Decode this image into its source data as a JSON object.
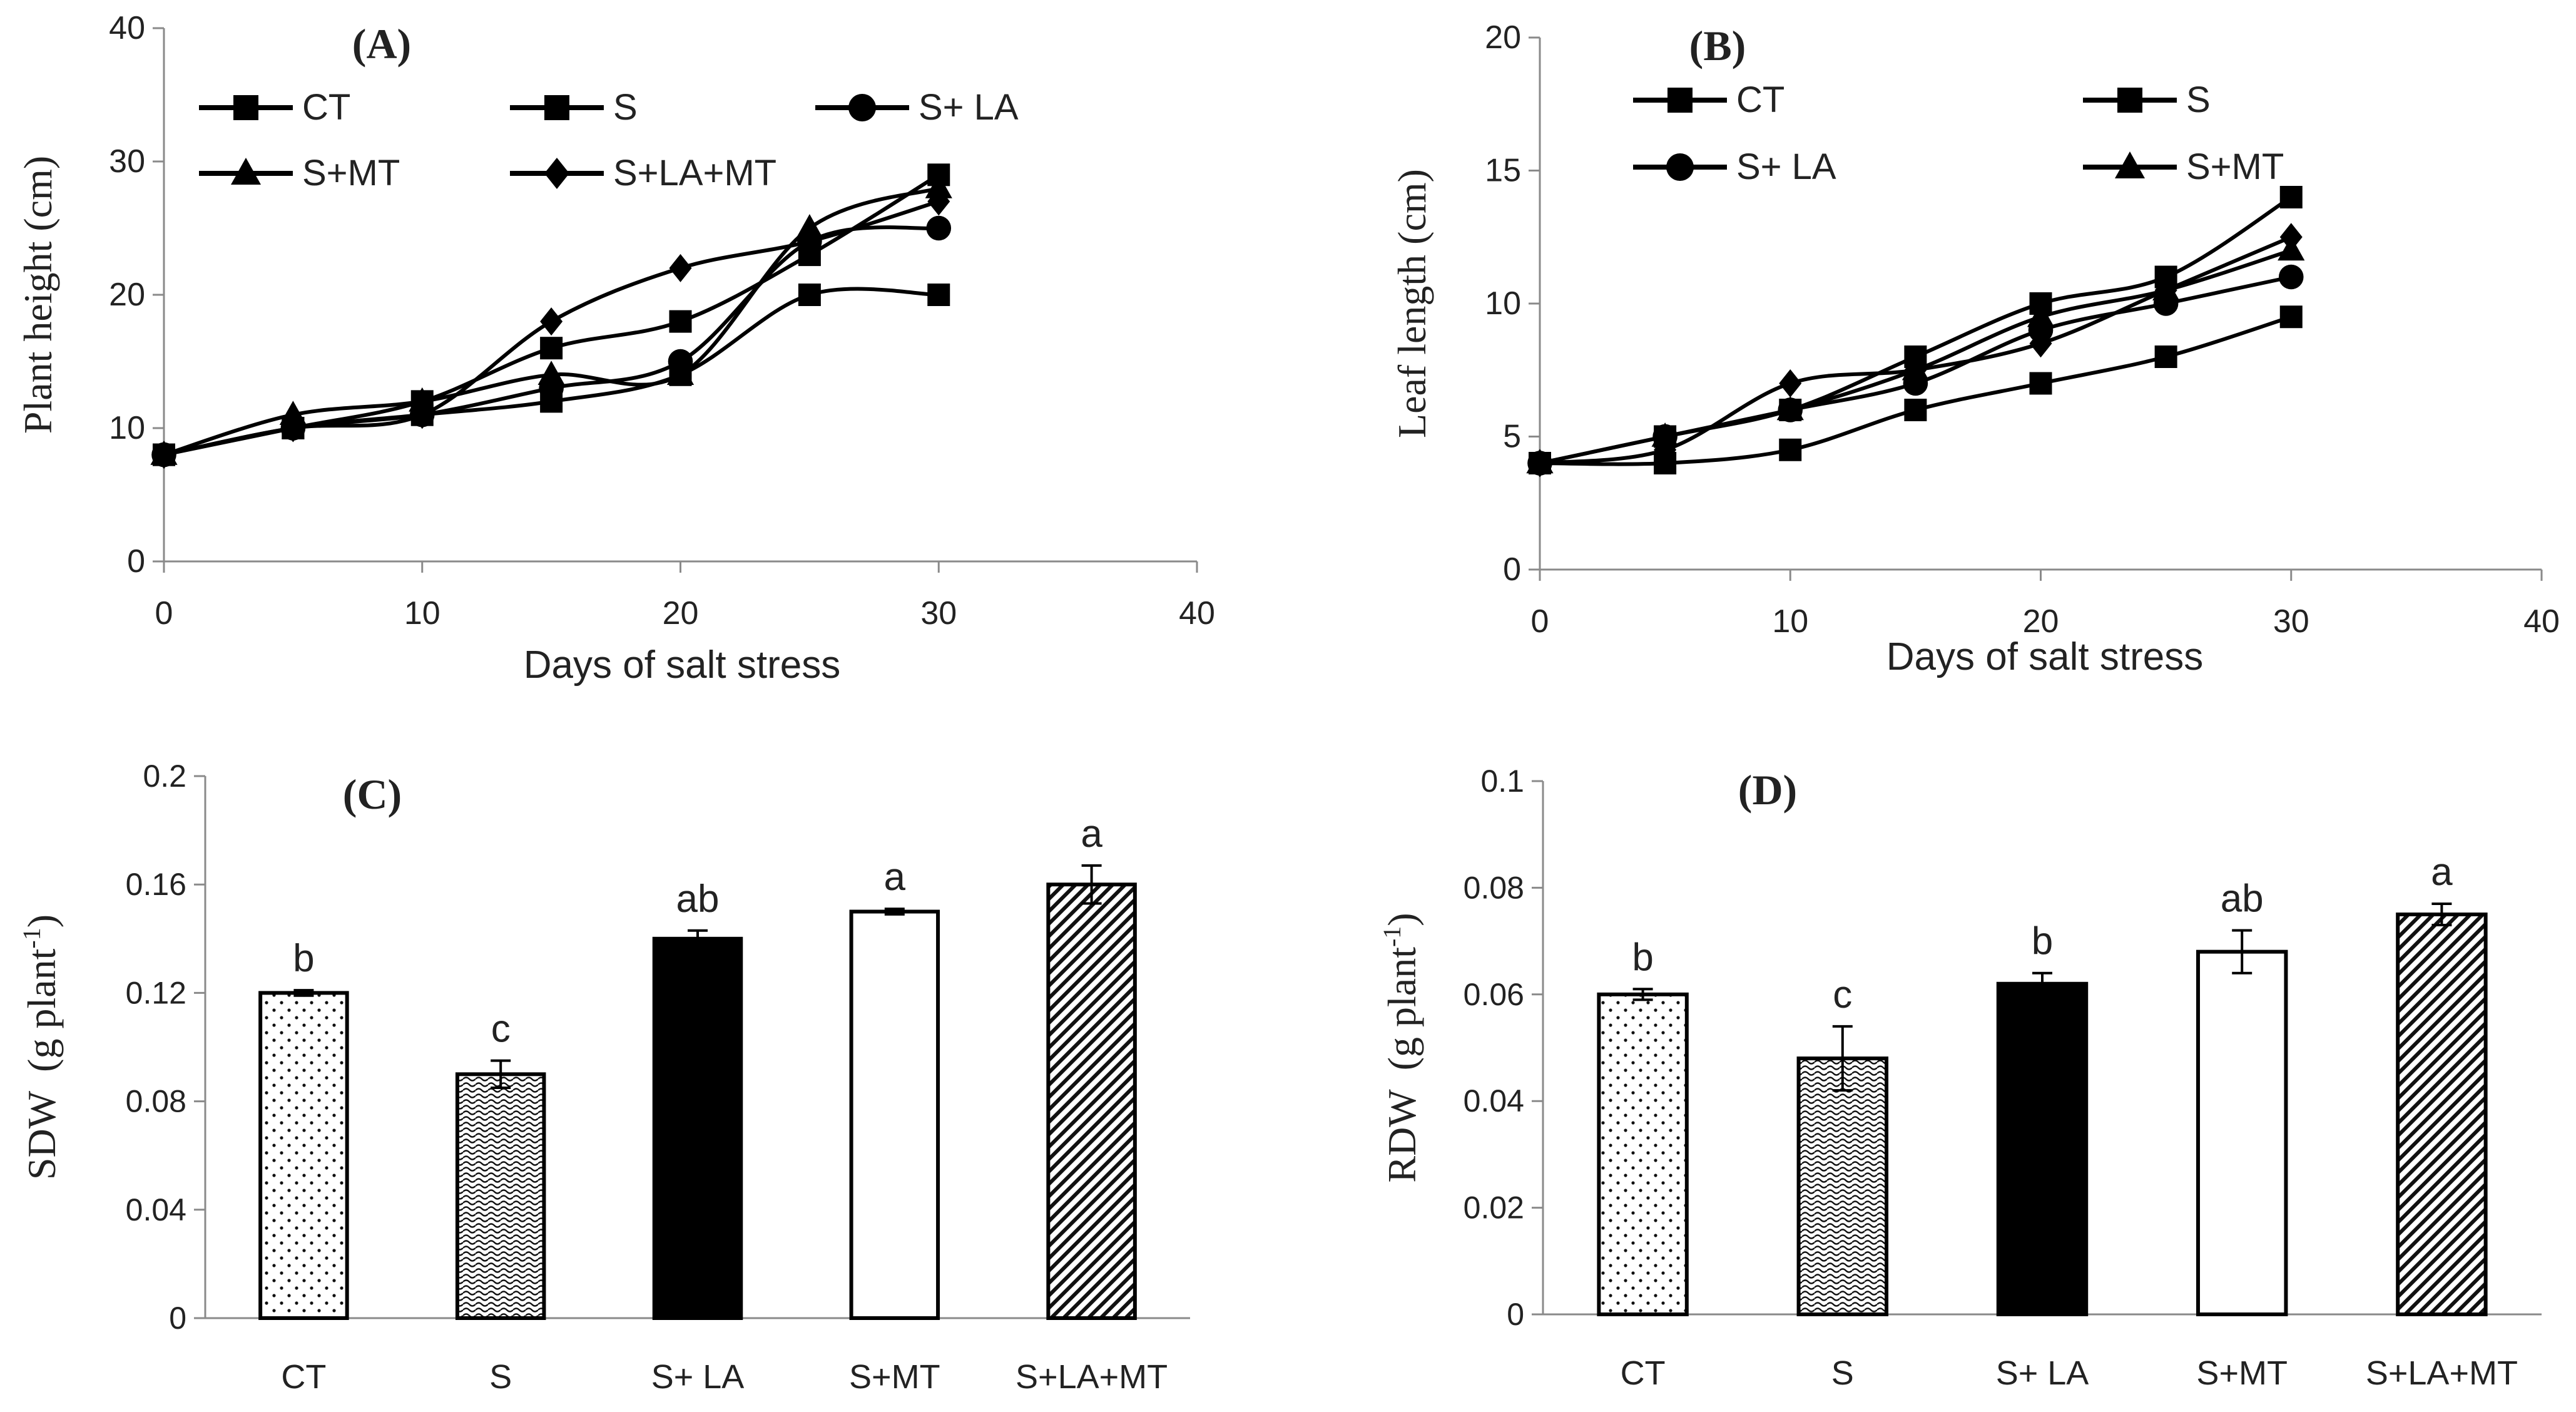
{
  "chart_data": [
    {
      "id": "A",
      "type": "line",
      "panel_label": "(A)",
      "xlabel": "Days of salt stress",
      "ylabel": "Plant height (cm)",
      "xlim": [
        0,
        40
      ],
      "ylim": [
        0,
        40
      ],
      "xticks": [
        "0",
        "10",
        "20",
        "30",
        "40"
      ],
      "yticks": [
        "0",
        "10",
        "20",
        "30",
        "40"
      ],
      "x": [
        0,
        5,
        10,
        15,
        20,
        25,
        30
      ],
      "series": [
        {
          "name": "CT",
          "marker": "square",
          "values": [
            8,
            10,
            12,
            16,
            18,
            23,
            29
          ]
        },
        {
          "name": "S",
          "marker": "square",
          "values": [
            8,
            10,
            11,
            12,
            14,
            20,
            20
          ]
        },
        {
          "name": "S+ LA",
          "marker": "circle",
          "values": [
            8,
            10,
            11,
            13,
            15,
            24,
            25
          ]
        },
        {
          "name": "S+MT",
          "marker": "triangle",
          "values": [
            8,
            11,
            12,
            14,
            14,
            25,
            28
          ]
        },
        {
          "name": "S+LA+MT",
          "marker": "diamond",
          "values": [
            8,
            10,
            11,
            18,
            22,
            24,
            27
          ]
        }
      ]
    },
    {
      "id": "B",
      "type": "line",
      "panel_label": "(B)",
      "xlabel": "Days of salt stress",
      "ylabel": "Leaf length (cm)",
      "xlim": [
        0,
        40
      ],
      "ylim": [
        0,
        20
      ],
      "xticks": [
        "0",
        "10",
        "20",
        "30",
        "40"
      ],
      "yticks": [
        "0",
        "5",
        "10",
        "15",
        "20"
      ],
      "x": [
        0,
        5,
        10,
        15,
        20,
        25,
        30
      ],
      "series": [
        {
          "name": "CT",
          "marker": "square",
          "values": [
            4,
            5,
            6,
            8,
            10,
            11,
            14
          ]
        },
        {
          "name": "S",
          "marker": "square",
          "values": [
            4,
            4,
            4.5,
            6,
            7,
            8,
            9.5
          ]
        },
        {
          "name": "S+ LA",
          "marker": "circle",
          "values": [
            4,
            5,
            6,
            7,
            9,
            10,
            11
          ]
        },
        {
          "name": "S+MT",
          "marker": "triangle",
          "values": [
            4,
            5,
            6,
            7.5,
            9.5,
            10.5,
            12
          ]
        },
        {
          "name": "S+LA+MT",
          "marker": "diamond",
          "values": [
            4,
            4.5,
            7,
            7.5,
            8.5,
            10.5,
            12.5
          ]
        }
      ],
      "legend_visible": [
        "CT",
        "S",
        "S+ LA",
        "S+MT"
      ]
    },
    {
      "id": "C",
      "type": "bar",
      "panel_label": "(C)",
      "ylabel_main": "SDW",
      "ylabel_unit_pre": "(g plant",
      "ylabel_unit_sup": "-1",
      "ylabel_unit_post": ")",
      "ylim": [
        0,
        0.2
      ],
      "yticks": [
        "0",
        "0.04",
        "0.08",
        "0.12",
        "0.16",
        "0.2"
      ],
      "categories": [
        "CT",
        "S",
        "S+ LA",
        "S+MT",
        "S+LA+MT"
      ],
      "values": [
        0.12,
        0.09,
        0.14,
        0.15,
        0.16
      ],
      "errors": [
        0.001,
        0.005,
        0.003,
        0.001,
        0.007
      ],
      "letters": [
        "b",
        "c",
        "ab",
        "a",
        "a"
      ],
      "patterns": [
        "dots",
        "waves",
        "solid",
        "empty",
        "diagonal"
      ]
    },
    {
      "id": "D",
      "type": "bar",
      "panel_label": "(D)",
      "ylabel_main": "RDW",
      "ylabel_unit_pre": "(g plant",
      "ylabel_unit_sup": "-1",
      "ylabel_unit_post": ")",
      "ylim": [
        0,
        0.1
      ],
      "yticks": [
        "0",
        "0.02",
        "0.04",
        "0.06",
        "0.08",
        "0.1"
      ],
      "categories": [
        "CT",
        "S",
        "S+ LA",
        "S+MT",
        "S+LA+MT"
      ],
      "values": [
        0.06,
        0.048,
        0.062,
        0.068,
        0.075
      ],
      "errors": [
        0.001,
        0.006,
        0.002,
        0.004,
        0.002
      ],
      "letters": [
        "b",
        "c",
        "b",
        "ab",
        "a"
      ],
      "patterns": [
        "dots",
        "waves",
        "solid",
        "empty",
        "diagonal"
      ]
    }
  ]
}
